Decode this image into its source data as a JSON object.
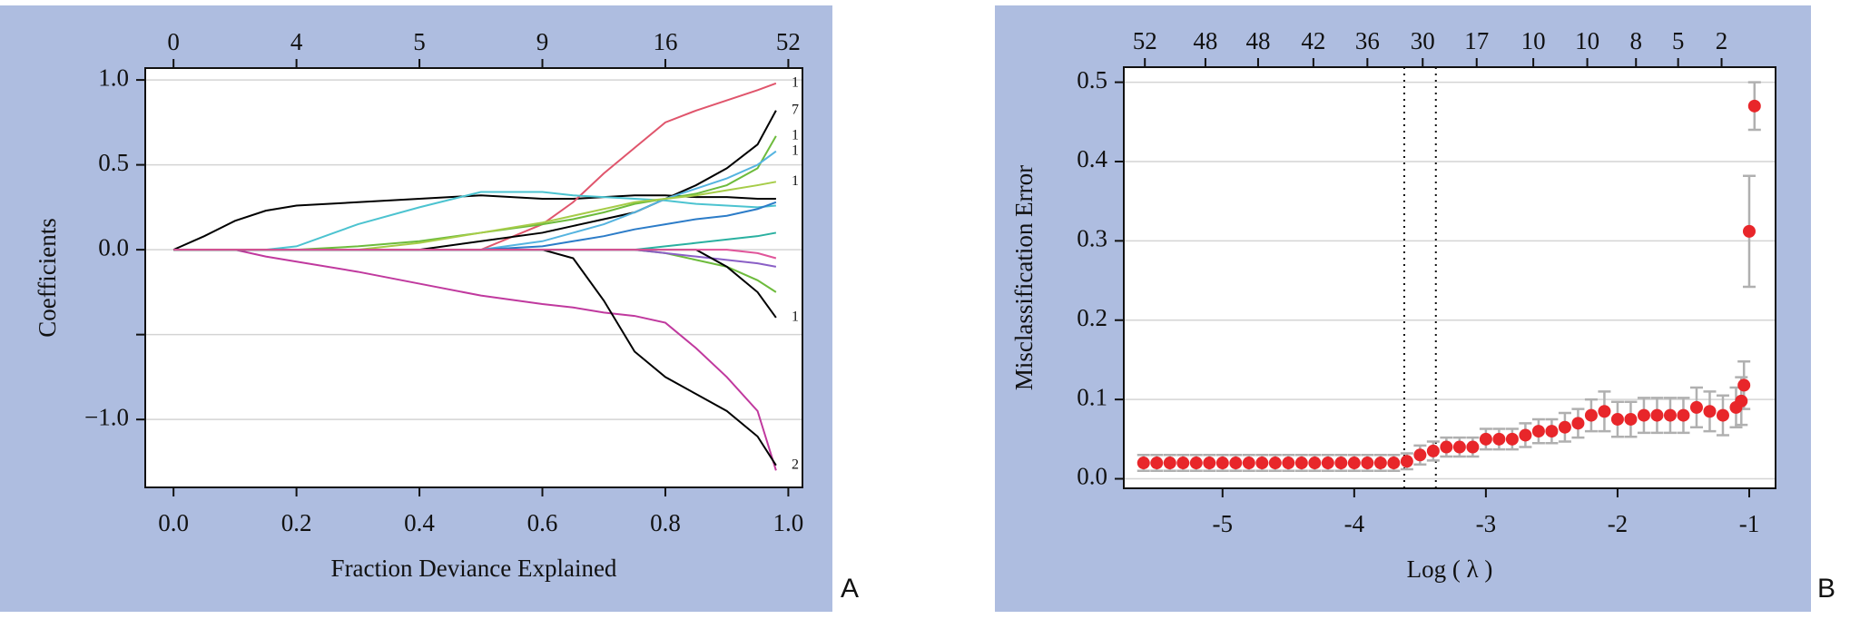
{
  "chart_data": [
    {
      "type": "line",
      "panel_label": "A",
      "xlabel": "Fraction Deviance Explained",
      "ylabel": "Coefficients",
      "xlim": [
        -0.046,
        1.023
      ],
      "ylim": [
        -1.4,
        1.07
      ],
      "xticks": [
        {
          "value": 0,
          "label": "0.0"
        },
        {
          "value": 0.2,
          "label": "0.2"
        },
        {
          "value": 0.4,
          "label": "0.4"
        },
        {
          "value": 0.6,
          "label": "0.6"
        },
        {
          "value": 0.8,
          "label": "0.8"
        },
        {
          "value": 1.0,
          "label": "1.0"
        }
      ],
      "x2ticks": [
        {
          "value": 0,
          "label": "0"
        },
        {
          "value": 0.2,
          "label": "4"
        },
        {
          "value": 0.4,
          "label": "5"
        },
        {
          "value": 0.6,
          "label": "9"
        },
        {
          "value": 0.8,
          "label": "16"
        },
        {
          "value": 1.0,
          "label": "52"
        }
      ],
      "yticks": [
        {
          "value": -1.0,
          "label": "−1.0"
        },
        {
          "value": -0.5,
          "label": null
        },
        {
          "value": 0,
          "label": "0.0"
        },
        {
          "value": 0.5,
          "label": "0.5"
        },
        {
          "value": 1.0,
          "label": "1.0"
        }
      ],
      "grid": true,
      "x": [
        0,
        0.05,
        0.1,
        0.15,
        0.2,
        0.3,
        0.4,
        0.5,
        0.6,
        0.65,
        0.7,
        0.75,
        0.8,
        0.85,
        0.9,
        0.95,
        0.98
      ],
      "series": [
        {
          "color": "#000000",
          "values": [
            0,
            0.08,
            0.17,
            0.23,
            0.26,
            0.28,
            0.3,
            0.32,
            0.3,
            0.3,
            0.31,
            0.32,
            0.32,
            0.31,
            0.31,
            0.3,
            0.3
          ]
        },
        {
          "color": "#c0399e",
          "values": [
            0,
            0,
            0,
            -0.04,
            -0.07,
            -0.13,
            -0.2,
            -0.27,
            -0.32,
            -0.34,
            -0.37,
            -0.39,
            -0.43,
            -0.58,
            -0.75,
            -0.95,
            -1.3
          ]
        },
        {
          "color": "#000000",
          "label": "2",
          "values": [
            0,
            0,
            0,
            0,
            0,
            0,
            0,
            0,
            0,
            -0.05,
            -0.3,
            -0.6,
            -0.75,
            -0.85,
            -0.95,
            -1.1,
            -1.27
          ]
        },
        {
          "color": "#e0556c",
          "label": "1",
          "values": [
            0,
            0,
            0,
            0,
            0,
            0,
            0,
            0,
            0.15,
            0.28,
            0.45,
            0.6,
            0.75,
            0.82,
            0.88,
            0.94,
            0.98
          ]
        },
        {
          "color": "#000000",
          "label": "7",
          "values": [
            0,
            0,
            0,
            0,
            0,
            0,
            0,
            0.05,
            0.1,
            0.14,
            0.18,
            0.22,
            0.3,
            0.38,
            0.48,
            0.62,
            0.82
          ]
        },
        {
          "color": "#4cc3d0",
          "values": [
            0,
            0,
            0,
            0,
            0.02,
            0.15,
            0.25,
            0.34,
            0.34,
            0.32,
            0.31,
            0.3,
            0.29,
            0.27,
            0.26,
            0.25,
            0.26
          ]
        },
        {
          "color": "#6dbb3c",
          "label": "1",
          "values": [
            0,
            0,
            0,
            0,
            0,
            0.02,
            0.05,
            0.1,
            0.15,
            0.18,
            0.22,
            0.27,
            0.3,
            0.33,
            0.38,
            0.48,
            0.67
          ]
        },
        {
          "color": "#55b4e0",
          "label": "1",
          "values": [
            0,
            0,
            0,
            0,
            0,
            0,
            0,
            0,
            0.05,
            0.1,
            0.15,
            0.22,
            0.3,
            0.36,
            0.42,
            0.5,
            0.58
          ]
        },
        {
          "color": "#2c7cc8",
          "values": [
            0,
            0,
            0,
            0,
            0,
            0,
            0,
            0,
            0.02,
            0.05,
            0.08,
            0.12,
            0.15,
            0.18,
            0.2,
            0.24,
            0.28
          ]
        },
        {
          "color": "#6dbb3c",
          "values": [
            0,
            0,
            0,
            0,
            0,
            0,
            0,
            0,
            0,
            0,
            0,
            0,
            -0.02,
            -0.06,
            -0.1,
            -0.18,
            -0.25
          ]
        },
        {
          "color": "#a6cc48",
          "label": "1",
          "values": [
            0,
            0,
            0,
            0,
            0,
            0,
            0.04,
            0.1,
            0.16,
            0.2,
            0.24,
            0.28,
            0.3,
            0.32,
            0.35,
            0.38,
            0.4
          ]
        },
        {
          "color": "#8a5fc6",
          "values": [
            0,
            0,
            0,
            0,
            0,
            0,
            0,
            0,
            0,
            0,
            0,
            0,
            -0.02,
            -0.04,
            -0.06,
            -0.08,
            -0.1
          ]
        },
        {
          "color": "#2ab0a0",
          "values": [
            0,
            0,
            0,
            0,
            0,
            0,
            0,
            0,
            0,
            0,
            0,
            0,
            0.02,
            0.04,
            0.06,
            0.08,
            0.1
          ]
        },
        {
          "color": "#000000",
          "label": "1",
          "values": [
            0,
            0,
            0,
            0,
            0,
            0,
            0,
            0,
            0,
            0,
            0,
            0,
            0,
            0,
            -0.1,
            -0.25,
            -0.4
          ]
        },
        {
          "color": "#e0559a",
          "values": [
            0,
            0,
            0,
            0,
            0,
            0,
            0,
            0,
            0,
            0,
            0,
            0,
            0,
            0,
            0,
            -0.02,
            -0.05
          ]
        }
      ]
    },
    {
      "type": "scatter",
      "panel_label": "B",
      "xlabel": "Log ( λ )",
      "ylabel": "Misclassification Error",
      "xlim": [
        -5.75,
        -0.8
      ],
      "ylim": [
        -0.012,
        0.519
      ],
      "xticks": [
        -5,
        -4,
        -3,
        -2,
        -1
      ],
      "x2ticks": [
        {
          "value": -5.59,
          "label": "52"
        },
        {
          "value": -5.13,
          "label": "48"
        },
        {
          "value": -4.73,
          "label": "48"
        },
        {
          "value": -4.31,
          "label": "42"
        },
        {
          "value": -3.9,
          "label": "36"
        },
        {
          "value": -3.48,
          "label": "30"
        },
        {
          "value": -3.07,
          "label": "17"
        },
        {
          "value": -2.64,
          "label": "10"
        },
        {
          "value": -2.23,
          "label": "10"
        },
        {
          "value": -1.86,
          "label": "8"
        },
        {
          "value": -1.54,
          "label": "5"
        },
        {
          "value": -1.21,
          "label": "2"
        }
      ],
      "yticks": [
        {
          "value": 0,
          "label": "0.0"
        },
        {
          "value": 0.1,
          "label": "0.1"
        },
        {
          "value": 0.2,
          "label": "0.2"
        },
        {
          "value": 0.3,
          "label": "0.3"
        },
        {
          "value": 0.4,
          "label": "0.4"
        },
        {
          "value": 0.5,
          "label": "0.5"
        }
      ],
      "grid": true,
      "color": "#e8262a",
      "error_color": "#b0b0b0",
      "vlines": [
        -3.62,
        -3.38
      ],
      "x": [
        -5.6,
        -5.5,
        -5.4,
        -5.3,
        -5.2,
        -5.1,
        -5.0,
        -4.9,
        -4.8,
        -4.7,
        -4.6,
        -4.5,
        -4.4,
        -4.3,
        -4.2,
        -4.1,
        -4.0,
        -3.9,
        -3.8,
        -3.7,
        -3.6,
        -3.5,
        -3.4,
        -3.3,
        -3.2,
        -3.1,
        -3.0,
        -2.9,
        -2.8,
        -2.7,
        -2.6,
        -2.5,
        -2.4,
        -2.3,
        -2.2,
        -2.1,
        -2.0,
        -1.9,
        -1.8,
        -1.7,
        -1.6,
        -1.5,
        -1.4,
        -1.3,
        -1.2,
        -1.1,
        -1.06,
        -1.04,
        -1.0,
        -0.96
      ],
      "values": [
        0.02,
        0.02,
        0.02,
        0.02,
        0.02,
        0.02,
        0.02,
        0.02,
        0.02,
        0.02,
        0.02,
        0.02,
        0.02,
        0.02,
        0.02,
        0.02,
        0.02,
        0.02,
        0.02,
        0.02,
        0.022,
        0.03,
        0.035,
        0.04,
        0.04,
        0.04,
        0.05,
        0.05,
        0.05,
        0.055,
        0.06,
        0.06,
        0.065,
        0.07,
        0.08,
        0.085,
        0.075,
        0.075,
        0.08,
        0.08,
        0.08,
        0.08,
        0.09,
        0.085,
        0.08,
        0.09,
        0.098,
        0.118,
        0.312,
        0.47
      ],
      "errors": [
        0.01,
        0.01,
        0.01,
        0.01,
        0.01,
        0.01,
        0.01,
        0.01,
        0.01,
        0.01,
        0.01,
        0.01,
        0.01,
        0.01,
        0.01,
        0.01,
        0.01,
        0.01,
        0.01,
        0.01,
        0.01,
        0.012,
        0.012,
        0.012,
        0.012,
        0.012,
        0.013,
        0.013,
        0.013,
        0.015,
        0.015,
        0.015,
        0.018,
        0.018,
        0.02,
        0.025,
        0.022,
        0.022,
        0.022,
        0.022,
        0.022,
        0.022,
        0.025,
        0.025,
        0.025,
        0.025,
        0.03,
        0.03,
        0.07,
        0.03
      ]
    }
  ]
}
